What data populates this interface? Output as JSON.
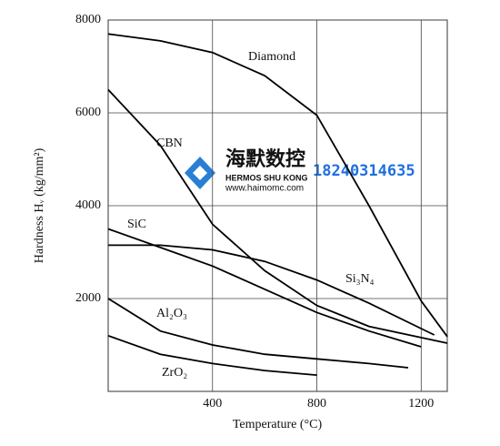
{
  "chart_data": {
    "type": "line",
    "xlabel": "Temperature (°C)",
    "ylabel": "Hardness Hᵥ (kg/mm²)",
    "xlim": [
      0,
      1300
    ],
    "ylim": [
      0,
      8000
    ],
    "xticks": [
      400,
      800,
      1200
    ],
    "yticks": [
      2000,
      4000,
      6000,
      8000
    ],
    "grid": true,
    "series": [
      {
        "name": "Diamond",
        "color": "#000000",
        "x": [
          0,
          200,
          400,
          600,
          800,
          1000,
          1200,
          1300
        ],
        "values": [
          7700,
          7550,
          7300,
          6800,
          5950,
          4000,
          1950,
          1180
        ]
      },
      {
        "name": "CBN",
        "color": "#000000",
        "x": [
          0,
          200,
          400,
          600,
          800,
          1000,
          1300
        ],
        "values": [
          6500,
          5300,
          3600,
          2600,
          1850,
          1400,
          1040
        ]
      },
      {
        "name": "SiC",
        "color": "#000000",
        "x": [
          0,
          200,
          400,
          600,
          800,
          1000,
          1200
        ],
        "values": [
          3500,
          3100,
          2700,
          2200,
          1700,
          1300,
          960
        ]
      },
      {
        "name": "Si₃N₄",
        "color": "#000000",
        "x": [
          0,
          200,
          400,
          600,
          800,
          1000,
          1250
        ],
        "values": [
          3150,
          3150,
          3050,
          2800,
          2400,
          1900,
          1215
        ]
      },
      {
        "name": "Al₂O₃",
        "color": "#000000",
        "x": [
          0,
          200,
          400,
          600,
          800,
          1000,
          1150
        ],
        "values": [
          2000,
          1300,
          1000,
          800,
          700,
          600,
          510
        ]
      },
      {
        "name": "ZrO₂",
        "color": "#000000",
        "x": [
          0,
          200,
          400,
          600,
          800
        ],
        "values": [
          1200,
          800,
          600,
          450,
          350
        ]
      }
    ]
  },
  "watermark": {
    "brand": "海默数控",
    "brand_en": "HERMOS SHU KONG",
    "url": "www.haimomc.com",
    "phone": "18240314635"
  }
}
